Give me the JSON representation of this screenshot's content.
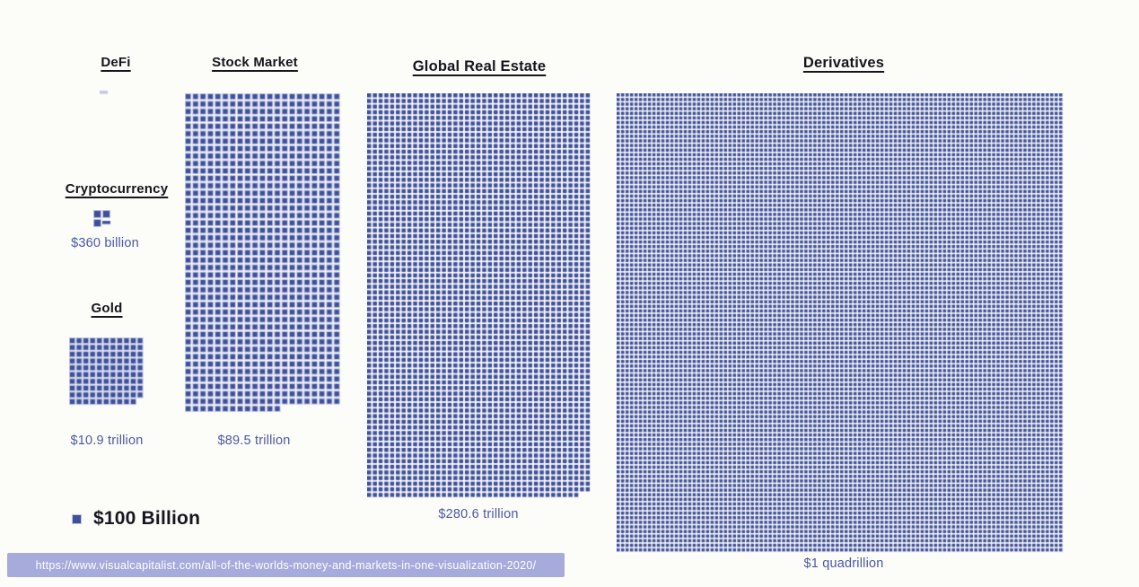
{
  "chart_data": {
    "type": "pictograph",
    "description": "All of the world's money and markets compared by area of unit squares",
    "unit_label": "$100 Billion",
    "unit_value_usd_billions": 100,
    "markets": [
      {
        "id": "defi",
        "label": "DeFi",
        "value_label": "",
        "squares_full": 0,
        "partial_square": true,
        "partial_style": "light"
      },
      {
        "id": "cryptocurrency",
        "label": "Cryptocurrency",
        "value_label": "$360 billion",
        "value_usd_billions": 360,
        "squares_full": 3,
        "partial_square": true,
        "partial_style": "solid"
      },
      {
        "id": "gold",
        "label": "Gold",
        "value_label": "$10.9 trillion",
        "value_usd_billions": 10900,
        "squares_full": 109,
        "partial_square": false,
        "partial_style": "solid"
      },
      {
        "id": "stock_market",
        "label": "Stock Market",
        "value_label": "$89.5 trillion",
        "value_usd_billions": 89500,
        "squares_full": 895,
        "partial_square": false,
        "partial_style": "solid"
      },
      {
        "id": "global_real_estate",
        "label": "Global Real Estate",
        "value_label": "$280.6 trillion",
        "value_usd_billions": 280600,
        "squares_full": 2806,
        "partial_square": false,
        "partial_style": "solid"
      },
      {
        "id": "derivatives",
        "label": "Derivatives",
        "value_label": "$1 quadrillion",
        "value_usd_billions": 1000000,
        "squares_full": 10000,
        "partial_square": false,
        "partial_style": "solid"
      }
    ],
    "legend": {
      "label": "$100 Billion"
    },
    "colors": {
      "square_core": "#3e4f9b",
      "square_halo": "#c0c7e2",
      "value_text": "#4a59a4",
      "title_text": "#15151d",
      "background": "#fcfcf9",
      "url_bar_bg": "#a7abdc",
      "url_bar_text": "#ffffff"
    }
  },
  "source": {
    "url_text": "https://www.visualcapitalist.com/all-of-the-worlds-money-and-markets-in-one-visualization-2020/"
  }
}
